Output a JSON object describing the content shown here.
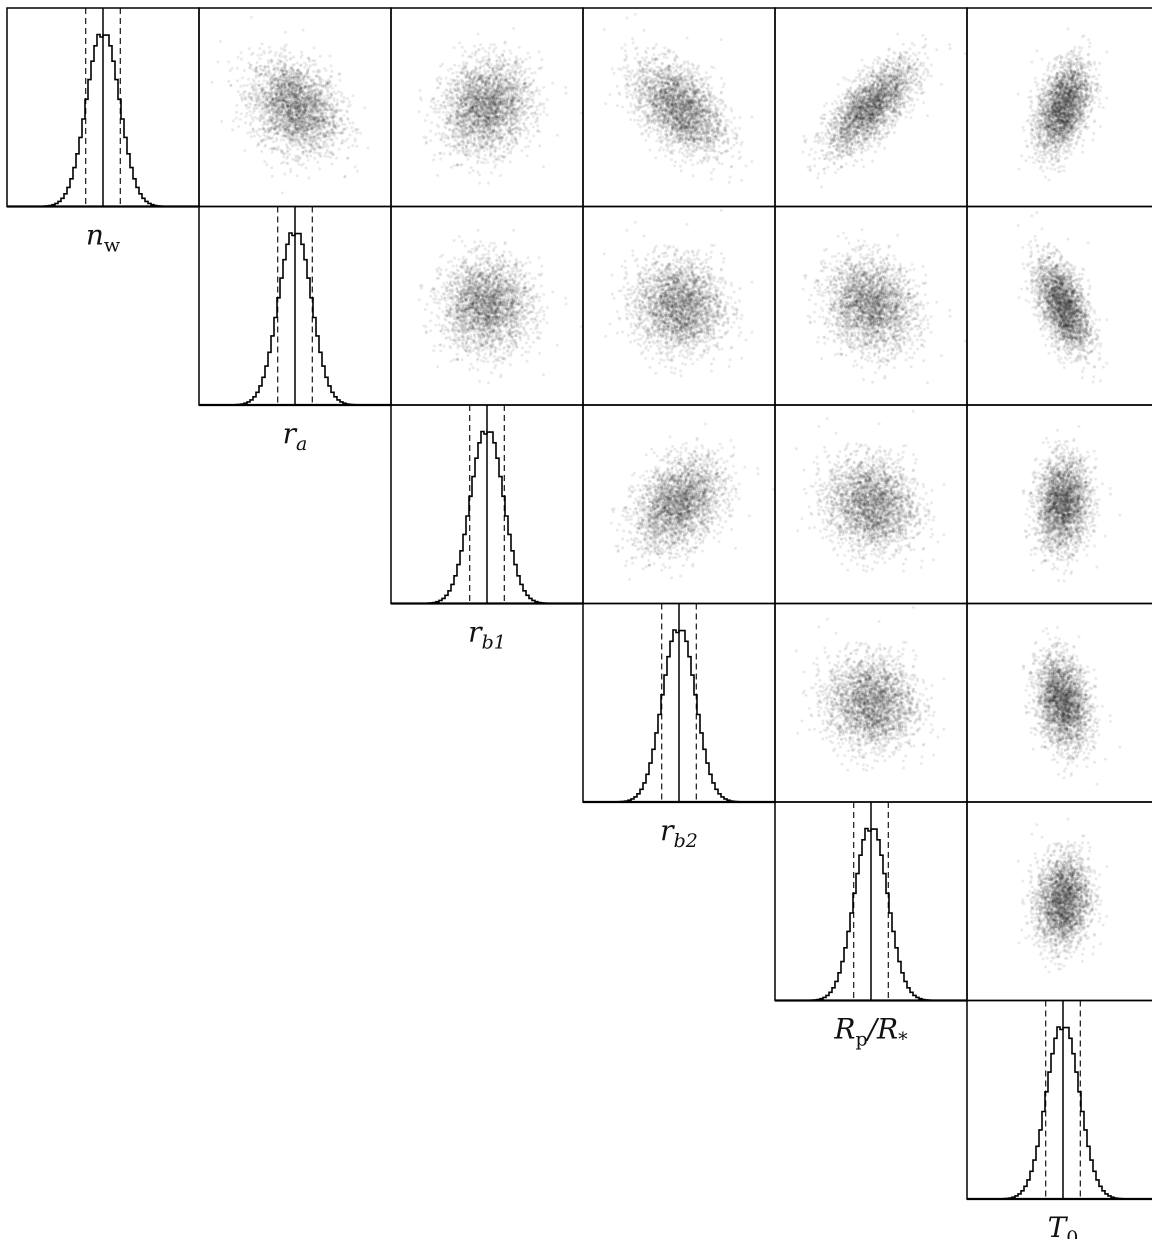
{
  "chart_data": {
    "type": "scatter",
    "subtype": "corner-plot",
    "title": "",
    "parameters": [
      {
        "key": "nw",
        "label": "n",
        "sub": "w",
        "sub_italic": false
      },
      {
        "key": "ra",
        "label": "r",
        "sub": "a",
        "sub_italic": true
      },
      {
        "key": "rb1",
        "label": "r",
        "sub": "b1",
        "sub_italic": true
      },
      {
        "key": "rb2",
        "label": "r",
        "sub": "b2",
        "sub_italic": true
      },
      {
        "key": "rprs",
        "label": "R",
        "sub": "p",
        "sub_italic": false,
        "suffix": "/R",
        "suffix_sub": "*"
      },
      {
        "key": "t0",
        "label": "T",
        "sub": "0",
        "sub_italic": false
      }
    ],
    "diagonal": [
      {
        "param": "nw",
        "center": 0.5,
        "sigma": 0.085,
        "ci_low": 0.41,
        "ci_high": 0.59
      },
      {
        "param": "ra",
        "center": 0.5,
        "sigma": 0.085,
        "ci_low": 0.41,
        "ci_high": 0.59
      },
      {
        "param": "rb1",
        "center": 0.5,
        "sigma": 0.085,
        "ci_low": 0.41,
        "ci_high": 0.59
      },
      {
        "param": "rb2",
        "center": 0.5,
        "sigma": 0.085,
        "ci_low": 0.41,
        "ci_high": 0.59
      },
      {
        "param": "rprs",
        "center": 0.5,
        "sigma": 0.085,
        "ci_low": 0.41,
        "ci_high": 0.59
      },
      {
        "param": "t0",
        "center": 0.5,
        "sigma": 0.085,
        "ci_low": 0.41,
        "ci_high": 0.59
      }
    ],
    "correlations": [
      {
        "row": "nw",
        "col": "ra",
        "rho": -0.25
      },
      {
        "row": "nw",
        "col": "rb1",
        "rho": 0.15
      },
      {
        "row": "nw",
        "col": "rb2",
        "rho": -0.45
      },
      {
        "row": "nw",
        "col": "rprs",
        "rho": 0.7
      },
      {
        "row": "nw",
        "col": "t0",
        "rho": 0.4,
        "x_spread": 0.6
      },
      {
        "row": "ra",
        "col": "rb1",
        "rho": 0.0
      },
      {
        "row": "ra",
        "col": "rb2",
        "rho": -0.05
      },
      {
        "row": "ra",
        "col": "rprs",
        "rho": -0.15
      },
      {
        "row": "ra",
        "col": "t0",
        "rho": -0.5,
        "x_spread": 0.6
      },
      {
        "row": "rb1",
        "col": "rb2",
        "rho": 0.35
      },
      {
        "row": "rb1",
        "col": "rprs",
        "rho": -0.1
      },
      {
        "row": "rb1",
        "col": "t0",
        "rho": 0.1,
        "x_spread": 0.6
      },
      {
        "row": "rb2",
        "col": "rprs",
        "rho": -0.05
      },
      {
        "row": "rb2",
        "col": "t0",
        "rho": -0.25,
        "x_spread": 0.6
      },
      {
        "row": "rprs",
        "col": "t0",
        "rho": 0.1,
        "x_spread": 0.6
      }
    ],
    "xlim": [
      0,
      1
    ],
    "ylim": [
      0,
      1
    ],
    "grid": false,
    "legend": "none",
    "colors": {
      "axes": "#000000",
      "density": "#1a1a1a",
      "line": "#000000"
    }
  }
}
